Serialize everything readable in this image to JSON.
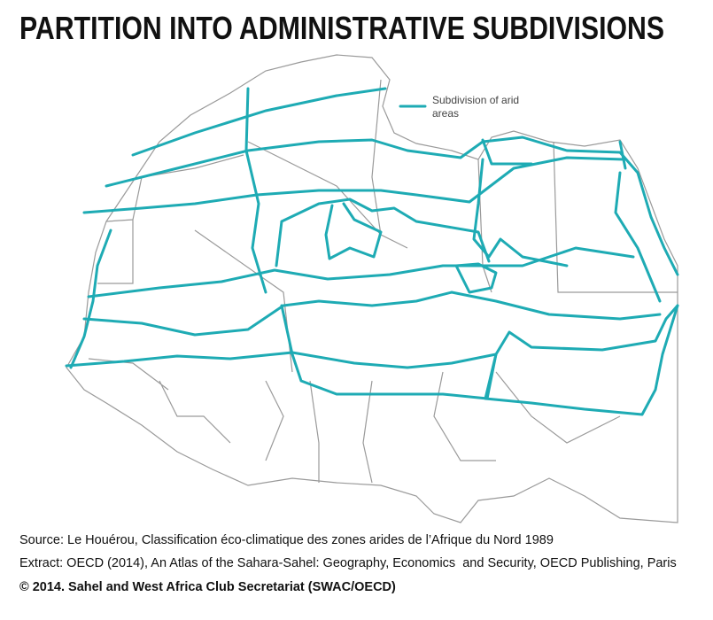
{
  "title": "PARTITION INTO ADMINISTRATIVE SUBDIVISIONS",
  "legend": {
    "label_lines": [
      "Subdivision of arid",
      "areas"
    ]
  },
  "footer": {
    "source": "Source: Le Houérou, Classification éco-climatique des zones arides de l’Afrique du Nord 1989",
    "extract": "Extract: OECD (2014), An Atlas of the Sahara-Sahel: Geography, Economics  and Security, OECD Publishing, Paris",
    "copyright": "© 2014. Sahel and West Africa Club Secretariat (SWAC/OECD)"
  }
}
